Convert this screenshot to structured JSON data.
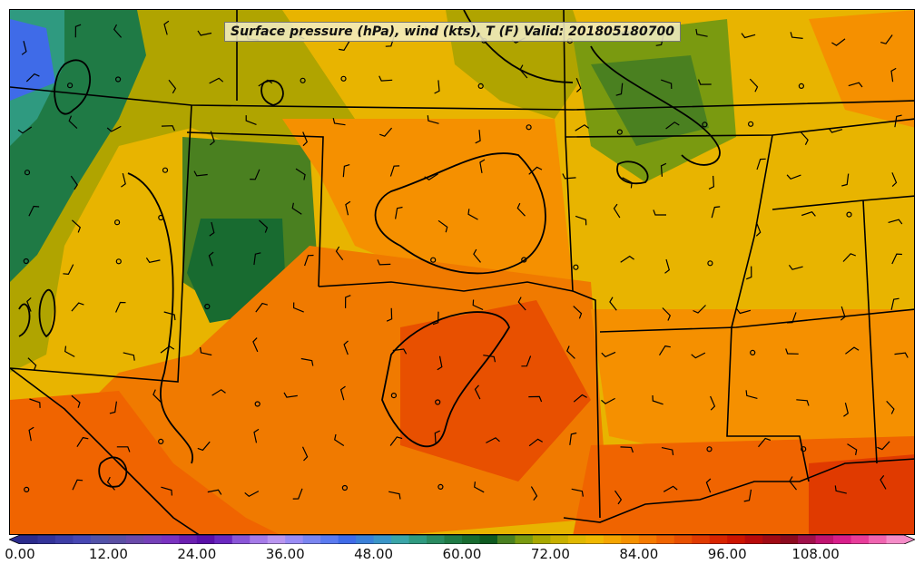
{
  "map": {
    "title": "Surface pressure (hPa), wind (kts), T (F) Valid: 201805180700",
    "field": "temperature",
    "units": "F",
    "overlays": [
      "surface-pressure-contours",
      "wind-barbs",
      "state-borders"
    ]
  },
  "colorbar": {
    "min": 0,
    "max": 120,
    "step": 3,
    "extend": "both",
    "colors": [
      "#2b2b8c",
      "#333399",
      "#3d3da6",
      "#4747b3",
      "#5252a8",
      "#5a4fa3",
      "#6a4aaa",
      "#7540b8",
      "#7a32c0",
      "#6b1fb0",
      "#5a10a8",
      "#6a28c0",
      "#8a55d8",
      "#a57ae8",
      "#b995f0",
      "#9a8cf5",
      "#7a85f0",
      "#5a7af0",
      "#3f6be8",
      "#3a80d8",
      "#3a95c8",
      "#3aa5a8",
      "#2f9a80",
      "#2a8a60",
      "#1f7a45",
      "#186b30",
      "#0f5a20",
      "#4a8020",
      "#7a9a10",
      "#a8a800",
      "#c8b000",
      "#e0b800",
      "#f0b800",
      "#f5a500",
      "#f59000",
      "#f57a00",
      "#f06400",
      "#e85000",
      "#e03a00",
      "#d82400",
      "#cc1400",
      "#b80a0a",
      "#a00a14",
      "#8c0a1e",
      "#a0104a",
      "#c01470",
      "#d81e8a",
      "#e83c9a",
      "#f064b0",
      "#f58cc8"
    ],
    "ticks": [
      "0.00",
      "12.00",
      "24.00",
      "36.00",
      "48.00",
      "60.00",
      "72.00",
      "84.00",
      "96.00",
      "108.00"
    ]
  }
}
